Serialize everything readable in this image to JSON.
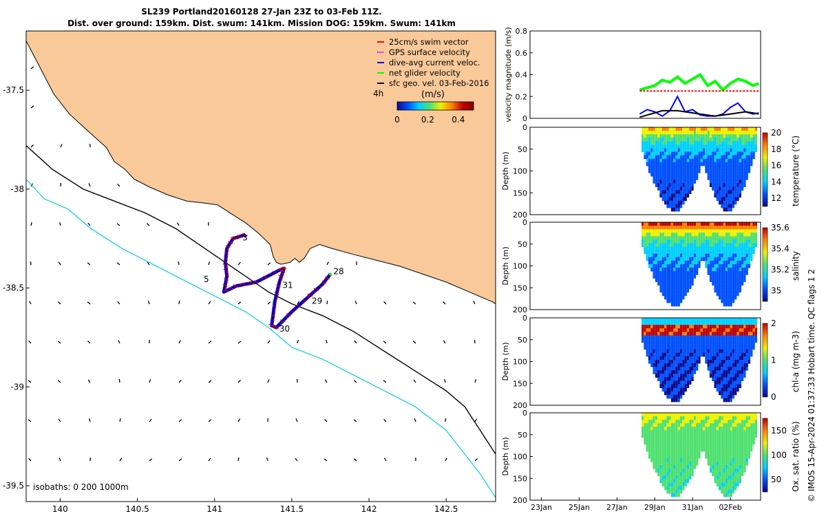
{
  "title_line1": "SL239 Portland20160128 27-Jan 23Z to 03-Feb 11Z.",
  "title_line2": "Dist. over ground: 159km. Dist. swum: 141km. Mission DOG: 159km. Swum: 141km",
  "credit": "© IMOS 15-Apr-2024 01:37:33 Hobart time. QC flags 1  2",
  "colors": {
    "land": "#f9c99a",
    "shelf_isobath": "#22d3e6",
    "isobath": "#000000",
    "swim_vector": "#ff0000",
    "gps_velocity": "#ff00ff",
    "dive_avg": "#0000ff",
    "net_velocity": "#00ff00",
    "geo_velocity": "#000000",
    "speed_colormap": [
      "#0a0a8a",
      "#0050ff",
      "#00d0ff",
      "#50e070",
      "#f0f000",
      "#ff8000",
      "#c00000",
      "#800000"
    ]
  },
  "chart_data": [
    {
      "type": "map",
      "xlim": [
        139.78,
        142.82
      ],
      "ylim": [
        -39.58,
        -37.2
      ],
      "xticks": [
        140,
        140.5,
        141,
        141.5,
        142,
        142.5
      ],
      "xtick_labels": [
        "140",
        "140.5",
        "141",
        "141.5",
        "142",
        "142.5"
      ],
      "yticks": [
        -37.5,
        -38,
        -38.5,
        -39,
        -39.5
      ],
      "ytick_labels": [
        "-37.5",
        "-38",
        "-38.5",
        "-39",
        "-39.5"
      ],
      "legend": {
        "position": "top-right",
        "entries": [
          "25cm/s swim vector",
          "GPS surface velocity",
          "dive-avg current veloc.",
          "net glider velocity",
          "sfc geo. vel. 03-Feb-2016"
        ],
        "time_label": "4h"
      },
      "colorbar": {
        "label": "(m/s)",
        "range": [
          0,
          0.5
        ],
        "ticks": [
          "0",
          "0.2",
          "0.4"
        ]
      },
      "isobaths_label": "isobaths: 0   200  1000m",
      "coastline": [
        [
          139.78,
          -37.2
        ],
        [
          139.78,
          -37.25
        ],
        [
          139.88,
          -37.4
        ],
        [
          139.96,
          -37.52
        ],
        [
          140.06,
          -37.62
        ],
        [
          140.2,
          -37.72
        ],
        [
          140.3,
          -37.79
        ],
        [
          140.35,
          -37.86
        ],
        [
          140.42,
          -37.9
        ],
        [
          140.48,
          -37.95
        ],
        [
          140.58,
          -37.99
        ],
        [
          140.7,
          -38.03
        ],
        [
          140.82,
          -38.06
        ],
        [
          140.93,
          -38.07
        ],
        [
          141.02,
          -38.08
        ],
        [
          141.1,
          -38.12
        ],
        [
          141.2,
          -38.17
        ],
        [
          141.28,
          -38.22
        ],
        [
          141.36,
          -38.28
        ],
        [
          141.38,
          -38.34
        ],
        [
          141.4,
          -38.37
        ],
        [
          141.43,
          -38.38
        ],
        [
          141.49,
          -38.37
        ],
        [
          141.52,
          -38.35
        ],
        [
          141.55,
          -38.37
        ],
        [
          141.58,
          -38.35
        ],
        [
          141.62,
          -38.3
        ],
        [
          141.68,
          -38.28
        ],
        [
          141.76,
          -38.3
        ],
        [
          141.9,
          -38.33
        ],
        [
          142.05,
          -38.36
        ],
        [
          142.2,
          -38.39
        ],
        [
          142.35,
          -38.43
        ],
        [
          142.5,
          -38.47
        ],
        [
          142.65,
          -38.52
        ],
        [
          142.8,
          -38.57
        ],
        [
          142.82,
          -38.58
        ]
      ],
      "isobath_200m": [
        [
          139.78,
          -37.78
        ],
        [
          139.95,
          -37.9
        ],
        [
          140.15,
          -38.0
        ],
        [
          140.35,
          -38.06
        ],
        [
          140.55,
          -38.12
        ],
        [
          140.75,
          -38.2
        ],
        [
          140.9,
          -38.28
        ],
        [
          141.05,
          -38.36
        ],
        [
          141.2,
          -38.44
        ],
        [
          141.35,
          -38.52
        ],
        [
          141.5,
          -38.58
        ],
        [
          141.7,
          -38.64
        ],
        [
          141.9,
          -38.72
        ],
        [
          142.1,
          -38.82
        ],
        [
          142.3,
          -38.92
        ],
        [
          142.5,
          -39.02
        ],
        [
          142.62,
          -39.1
        ],
        [
          142.72,
          -39.22
        ],
        [
          142.82,
          -39.34
        ]
      ],
      "isobath_1000m": [
        [
          139.78,
          -37.95
        ],
        [
          139.9,
          -38.05
        ],
        [
          140.05,
          -38.1
        ],
        [
          140.2,
          -38.2
        ],
        [
          140.4,
          -38.3
        ],
        [
          140.6,
          -38.38
        ],
        [
          140.75,
          -38.44
        ],
        [
          140.9,
          -38.5
        ],
        [
          141.05,
          -38.56
        ],
        [
          141.2,
          -38.62
        ],
        [
          141.35,
          -38.7
        ],
        [
          141.5,
          -38.8
        ],
        [
          141.7,
          -38.86
        ],
        [
          141.9,
          -38.94
        ],
        [
          142.1,
          -39.02
        ],
        [
          142.3,
          -39.1
        ],
        [
          142.5,
          -39.22
        ],
        [
          142.62,
          -39.34
        ],
        [
          142.72,
          -39.44
        ],
        [
          142.82,
          -39.56
        ]
      ],
      "track": [
        [
          141.2,
          -38.23
        ],
        [
          141.12,
          -38.25
        ],
        [
          141.08,
          -38.3
        ],
        [
          141.07,
          -38.37
        ],
        [
          141.08,
          -38.44
        ],
        [
          141.06,
          -38.52
        ],
        [
          141.14,
          -38.49
        ],
        [
          141.27,
          -38.47
        ],
        [
          141.42,
          -38.41
        ],
        [
          141.45,
          -38.4
        ],
        [
          141.42,
          -38.47
        ],
        [
          141.39,
          -38.57
        ],
        [
          141.37,
          -38.69
        ],
        [
          141.4,
          -38.7
        ],
        [
          141.5,
          -38.62
        ],
        [
          141.6,
          -38.55
        ],
        [
          141.7,
          -38.48
        ],
        [
          141.75,
          -38.43
        ]
      ],
      "track_labels": [
        {
          "text": "3",
          "lon": 141.18,
          "lat": -38.26
        },
        {
          "text": "5",
          "lon": 140.93,
          "lat": -38.47
        },
        {
          "text": "31",
          "lon": 141.44,
          "lat": -38.5
        },
        {
          "text": "28",
          "lon": 141.77,
          "lat": -38.43
        },
        {
          "text": "29",
          "lon": 141.63,
          "lat": -38.58
        },
        {
          "text": "30",
          "lon": 141.42,
          "lat": -38.72
        }
      ]
    },
    {
      "type": "line",
      "ylabel": "velocity magnitude (m/s)",
      "ylim": [
        0,
        0.8
      ],
      "yticks": [
        "0",
        "0.2",
        "0.4",
        "0.6",
        "0.8"
      ],
      "x_days": [
        28.2,
        28.6,
        29.0,
        29.4,
        29.8,
        30.2,
        30.6,
        31.0,
        31.4,
        31.8,
        32.2,
        32.6,
        33.0,
        33.4,
        33.8,
        34.2,
        34.5
      ],
      "series": [
        {
          "color": "#00ff00",
          "values": [
            0.26,
            0.28,
            0.3,
            0.35,
            0.33,
            0.38,
            0.32,
            0.36,
            0.4,
            0.3,
            0.34,
            0.26,
            0.32,
            0.36,
            0.34,
            0.3,
            0.32
          ]
        },
        {
          "color": "#ff0000",
          "values": [
            0.25,
            0.25,
            0.25,
            0.25,
            0.25,
            0.25,
            0.25,
            0.25,
            0.25,
            0.25,
            0.25,
            0.25,
            0.25,
            0.25,
            0.25,
            0.25,
            0.25
          ]
        },
        {
          "color": "#0000ff",
          "values": [
            0.04,
            0.08,
            0.06,
            0.02,
            0.07,
            0.2,
            0.06,
            0.08,
            0.03,
            0.02,
            0.02,
            0.04,
            0.1,
            0.14,
            0.06,
            0.04,
            0.05
          ]
        },
        {
          "color": "#000000",
          "values": [
            0.01,
            0.03,
            0.05,
            0.07,
            0.07,
            0.07,
            0.06,
            0.05,
            0.04,
            0.03,
            0.02,
            0.03,
            0.04,
            0.05,
            0.06,
            0.05,
            0.04
          ]
        }
      ]
    },
    {
      "type": "heatmap",
      "ylabel": "Depth (m)",
      "ylim": [
        200,
        0
      ],
      "yticks": [
        "0",
        "50",
        "100",
        "150",
        "200"
      ],
      "colorbar_label": "temperature (°C)",
      "colorbar_range": [
        11,
        20
      ],
      "colorbar_ticks": [
        "12",
        "14",
        "16",
        "18",
        "20"
      ],
      "colormap": [
        "#0a0a8a",
        "#0050ff",
        "#00d0ff",
        "#50e070",
        "#f0f000",
        "#ff8000",
        "#c00000"
      ],
      "surface_value_frac": 0.75,
      "deep_value_frac": 0.1
    },
    {
      "type": "heatmap",
      "ylabel": "Depth (m)",
      "ylim": [
        200,
        0
      ],
      "yticks": [
        "0",
        "50",
        "100",
        "150",
        "200"
      ],
      "colorbar_label": "salinity",
      "colorbar_range": [
        34.9,
        35.6
      ],
      "colorbar_ticks": [
        "35",
        "35.2",
        "35.4",
        "35.6"
      ],
      "colormap": [
        "#0a0a8a",
        "#0050ff",
        "#00d0ff",
        "#50e070",
        "#f0f000",
        "#ff8000",
        "#c00000"
      ],
      "surface_value_frac": 0.95,
      "deep_value_frac": 0.15
    },
    {
      "type": "heatmap",
      "ylabel": "Depth (m)",
      "ylim": [
        200,
        0
      ],
      "yticks": [
        "0",
        "50",
        "100",
        "150",
        "200"
      ],
      "colorbar_label": "chl-a (mg m-3)",
      "colorbar_range": [
        0,
        2
      ],
      "colorbar_ticks": [
        "0",
        "1",
        "2"
      ],
      "colormap": [
        "#0a0a8a",
        "#0050ff",
        "#00d0ff",
        "#50e070",
        "#f0f000",
        "#ff8000",
        "#c00000"
      ],
      "surface_value_frac": 0.35,
      "deep_value_frac": 0.08
    },
    {
      "type": "heatmap",
      "ylabel": "Depth (m)",
      "ylim": [
        200,
        0
      ],
      "yticks": [
        "0",
        "50",
        "100",
        "150",
        "200"
      ],
      "xtick_labels": [
        "23Jan",
        "25Jan",
        "27Jan",
        "29Jan",
        "31Jan",
        "02Feb"
      ],
      "x_days": [
        23,
        25,
        27,
        29,
        31,
        33
      ],
      "xlim_days": [
        22.4,
        34.6
      ],
      "colorbar_label": "Ox. sat. ratio (%)",
      "colorbar_range": [
        25,
        175
      ],
      "colorbar_ticks": [
        "50",
        "100",
        "150"
      ],
      "colormap": [
        "#0a0a8a",
        "#0050ff",
        "#00d0ff",
        "#50e070",
        "#f0f000",
        "#ff8000",
        "#c00000"
      ],
      "surface_value_frac": 0.65,
      "deep_value_frac": 0.45
    }
  ]
}
